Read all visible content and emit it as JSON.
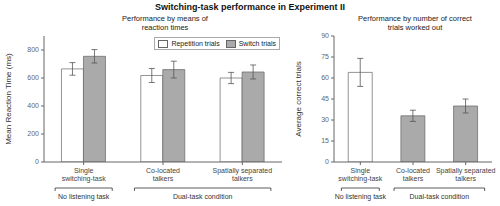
{
  "title": "Switching-task performance in Experiment II",
  "chart_data": [
    {
      "type": "bar",
      "title": "Performance by means of\nreaction times",
      "y_label": "Mean Reaction Time (ms)",
      "categories": [
        "Single\nswitching-task",
        "Co-located\ntalkers",
        "Spatially separated\ntalkers"
      ],
      "series": [
        {
          "name": "Repetition trials",
          "color": "#ffffff",
          "values": [
            665,
            618,
            600
          ],
          "errors": [
            45,
            50,
            40
          ]
        },
        {
          "name": "Switch trials",
          "color": "#aaaaaa",
          "values": [
            755,
            660,
            643
          ],
          "errors": [
            48,
            60,
            50
          ]
        }
      ],
      "ylim": [
        0,
        900
      ],
      "yticks": [
        0,
        200,
        400,
        600,
        800
      ],
      "grid": false,
      "legend": "upper right",
      "annotations": [
        {
          "text": "No listening task",
          "from": "Single\nswitching-task",
          "to": "Single\nswitching-task"
        },
        {
          "text": "Dual-task condition",
          "from": "Co-located\ntalkers",
          "to": "Spatially separated\ntalkers"
        }
      ]
    },
    {
      "type": "bar",
      "title": "Performance by number of correct\ntrials worked out",
      "y_label": "Average correct trials",
      "categories": [
        "Single\nswitching-task",
        "Co-located\ntalkers",
        "Spatially separated\ntalkers"
      ],
      "values": [
        64,
        33,
        40
      ],
      "errors": [
        10,
        4,
        5
      ],
      "colors": [
        "#ffffff",
        "#aaaaaa",
        "#aaaaaa"
      ],
      "ylim": [
        0,
        90
      ],
      "yticks": [
        0,
        15,
        30,
        45,
        60,
        75,
        90
      ],
      "grid": false,
      "annotations": [
        {
          "text": "No listening task",
          "from": "Single\nswitching-task",
          "to": "Single\nswitching-task"
        },
        {
          "text": "Dual-task condition",
          "from": "Co-located\ntalkers",
          "to": "Spatially separated\ntalkers"
        }
      ]
    }
  ]
}
